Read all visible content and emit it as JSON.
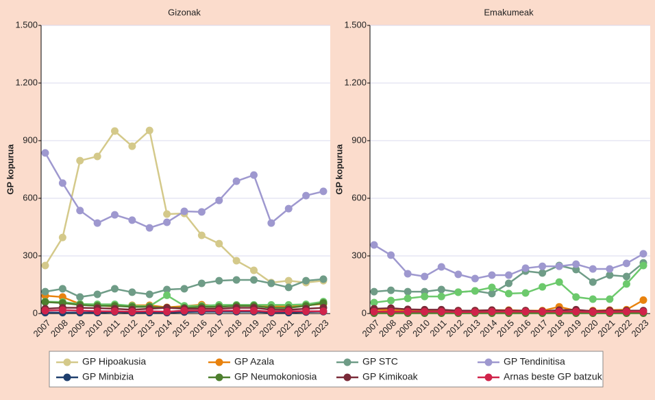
{
  "chart_data": [
    {
      "type": "line",
      "title": "Gizonak",
      "y_label": "GP kopurua",
      "categories": [
        "2007",
        "2008",
        "2009",
        "2010",
        "2011",
        "2012",
        "2013",
        "2014",
        "2015",
        "2016",
        "2017",
        "2018",
        "2019",
        "2020",
        "2021",
        "2022",
        "2023"
      ],
      "ylim": [
        0,
        1500
      ],
      "yticks": [
        0,
        300,
        600,
        900,
        {
          "value": 1200,
          "label": "1.200"
        },
        {
          "value": 1500,
          "label": "1.500"
        }
      ],
      "grid": true,
      "legend": "bottom",
      "series": [
        {
          "name": "GP Hipoakusia",
          "color": "#d4c98a",
          "values": [
            250,
            396,
            796,
            818,
            950,
            871,
            953,
            518,
            521,
            407,
            364,
            275,
            225,
            161,
            171,
            161,
            171
          ]
        },
        {
          "name": "GP Azala",
          "color": "#e8820e",
          "values": [
            93,
            86,
            50,
            43,
            36,
            43,
            43,
            32,
            39,
            46,
            39,
            43,
            39,
            39,
            39,
            43,
            50
          ]
        },
        {
          "name": "GP STC",
          "color": "#6f9c87",
          "values": [
            114,
            129,
            86,
            100,
            129,
            111,
            100,
            125,
            129,
            157,
            171,
            175,
            175,
            157,
            136,
            171,
            179
          ]
        },
        {
          "name": "GP Tendinitisa",
          "color": "#9e98cf",
          "values": [
            836,
            679,
            536,
            471,
            514,
            486,
            446,
            475,
            532,
            529,
            589,
            689,
            721,
            471,
            546,
            614,
            636
          ]
        },
        {
          "color": "#6cc96c",
          "values": [
            62,
            60,
            50,
            48,
            48,
            40,
            38,
            95,
            40,
            40,
            45,
            45,
            45,
            45,
            45,
            48,
            62
          ]
        },
        {
          "name": "GP Minbizia",
          "color": "#1f3f6e",
          "values": [
            5,
            5,
            5,
            5,
            8,
            5,
            5,
            5,
            8,
            10,
            10,
            10,
            10,
            5,
            5,
            8,
            10
          ]
        },
        {
          "name": "GP Neumokoniosia",
          "color": "#4d7f2e",
          "values": [
            60,
            55,
            45,
            40,
            40,
            35,
            35,
            30,
            30,
            35,
            35,
            40,
            40,
            30,
            30,
            40,
            55
          ]
        },
        {
          "name": "GP Kimikoak",
          "color": "#7a2a38",
          "values": [
            25,
            30,
            30,
            28,
            25,
            20,
            25,
            30,
            25,
            25,
            25,
            30,
            30,
            20,
            20,
            25,
            30
          ]
        },
        {
          "name": "Arnas beste GP batzuk",
          "color": "#d0234a",
          "values": [
            15,
            18,
            15,
            12,
            12,
            10,
            12,
            10,
            15,
            15,
            15,
            15,
            15,
            10,
            12,
            12,
            12
          ]
        }
      ]
    },
    {
      "type": "line",
      "title": "Emakumeak",
      "y_label": "GP kopurua",
      "categories": [
        "2007",
        "2008",
        "2009",
        "2010",
        "2011",
        "2012",
        "2013",
        "2014",
        "2015",
        "2016",
        "2017",
        "2018",
        "2019",
        "2020",
        "2021",
        "2022",
        "2023"
      ],
      "ylim": [
        0,
        1500
      ],
      "yticks": [
        0,
        300,
        600,
        900,
        {
          "value": 1200,
          "label": "1.200"
        },
        {
          "value": 1500,
          "label": "1.500"
        }
      ],
      "grid": true,
      "series": [
        {
          "name": "GP Hipoakusia",
          "color": "#d4c98a",
          "values": [
            10,
            10,
            10,
            10,
            10,
            8,
            8,
            10,
            10,
            10,
            10,
            10,
            10,
            8,
            8,
            10,
            10
          ]
        },
        {
          "name": "GP Azala",
          "color": "#e8820e",
          "values": [
            20,
            18,
            15,
            15,
            15,
            15,
            15,
            18,
            18,
            15,
            15,
            35,
            15,
            15,
            18,
            20,
            70
          ]
        },
        {
          "name": "GP STC",
          "color": "#6f9c87",
          "values": [
            114,
            121,
            114,
            114,
            125,
            111,
            118,
            104,
            157,
            221,
            211,
            250,
            229,
            164,
            200,
            193,
            264
          ]
        },
        {
          "name": "GP Tendinitisa",
          "color": "#9e98cf",
          "values": [
            357,
            304,
            207,
            193,
            243,
            204,
            182,
            200,
            200,
            236,
            246,
            246,
            257,
            232,
            232,
            261,
            311
          ]
        },
        {
          "color": "#6cc96c",
          "values": [
            57,
            68,
            79,
            89,
            89,
            111,
            118,
            136,
            104,
            107,
            139,
            164,
            86,
            75,
            75,
            154,
            250
          ]
        },
        {
          "name": "GP Minbizia",
          "color": "#1f3f6e",
          "values": [
            3,
            3,
            3,
            3,
            3,
            3,
            3,
            3,
            3,
            3,
            3,
            3,
            3,
            3,
            3,
            3,
            3
          ]
        },
        {
          "name": "GP Neumokoniosia",
          "color": "#4d7f2e",
          "values": [
            2,
            2,
            2,
            2,
            2,
            2,
            2,
            2,
            2,
            2,
            2,
            2,
            2,
            2,
            2,
            2,
            2
          ]
        },
        {
          "name": "GP Kimikoak",
          "color": "#7a2a38",
          "values": [
            25,
            28,
            22,
            20,
            20,
            15,
            15,
            18,
            15,
            15,
            12,
            18,
            20,
            12,
            15,
            15,
            15
          ]
        },
        {
          "name": "Arnas beste GP batzuk",
          "color": "#d0234a",
          "values": [
            10,
            10,
            10,
            10,
            10,
            8,
            8,
            10,
            10,
            10,
            10,
            10,
            10,
            8,
            8,
            10,
            10
          ]
        }
      ]
    }
  ]
}
